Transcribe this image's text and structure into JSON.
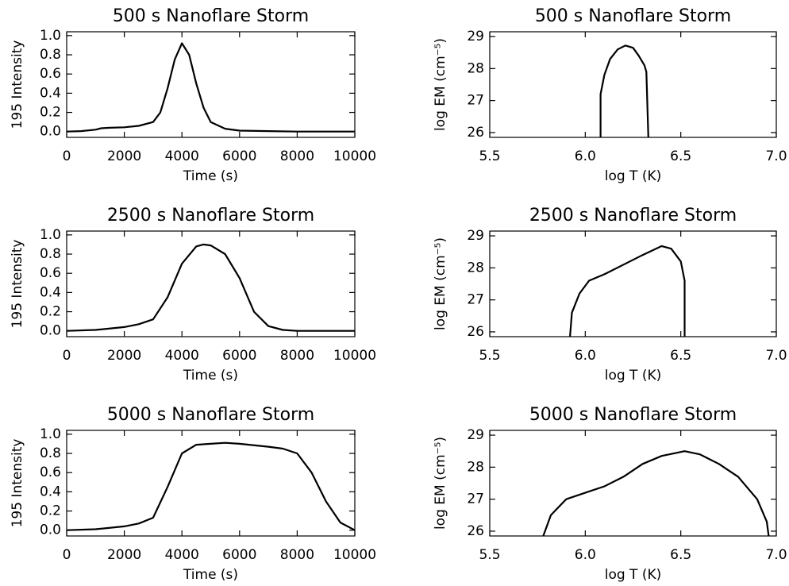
{
  "chart_data": [
    {
      "type": "line",
      "title": "500 s Nanoflare Storm",
      "xlabel": "Time (s)",
      "ylabel": "195 Intensity",
      "color": "#000000",
      "x": [
        0,
        500,
        1000,
        1200,
        1500,
        2000,
        2500,
        3000,
        3250,
        3500,
        3750,
        4000,
        4250,
        4500,
        4750,
        5000,
        5500,
        6000,
        7000,
        8000,
        9000,
        10000
      ],
      "values": [
        0,
        0.005,
        0.02,
        0.035,
        0.04,
        0.045,
        0.06,
        0.1,
        0.2,
        0.45,
        0.75,
        0.92,
        0.8,
        0.5,
        0.25,
        0.1,
        0.03,
        0.01,
        0.005,
        0,
        0,
        0
      ],
      "xlim": [
        0,
        10000
      ],
      "xticks": [
        0,
        2000,
        4000,
        6000,
        8000,
        10000
      ],
      "ylim": [
        -0.06,
        1.04
      ],
      "yticks": [
        {
          "value": 0,
          "label": "0.0"
        },
        0.2,
        0.4,
        0.6,
        0.8,
        {
          "value": 1,
          "label": "1.0"
        }
      ]
    },
    {
      "type": "line",
      "title": "500 s Nanoflare Storm",
      "xlabel": "log T (K)",
      "ylabel": "log EM (cm⁻⁵)",
      "color": "#000000",
      "x": [
        6.08,
        6.08,
        6.1,
        6.13,
        6.17,
        6.21,
        6.25,
        6.28,
        6.31,
        6.32,
        6.33
      ],
      "values": [
        25.85,
        27.2,
        27.8,
        28.3,
        28.6,
        28.72,
        28.65,
        28.4,
        28.1,
        27.9,
        25.85
      ],
      "xlim": [
        5.5,
        7.0
      ],
      "xticks": [
        5.5,
        {
          "value": 6,
          "label": "6.0"
        },
        6.5,
        {
          "value": 7,
          "label": "7.0"
        }
      ],
      "ylim": [
        25.85,
        29.15
      ],
      "yticks": [
        26,
        27,
        28,
        29
      ]
    },
    {
      "type": "line",
      "title": "2500 s Nanoflare Storm",
      "xlabel": "Time (s)",
      "ylabel": "195 Intensity",
      "color": "#000000",
      "x": [
        0,
        1000,
        2000,
        2500,
        3000,
        3500,
        4000,
        4500,
        4750,
        5000,
        5500,
        6000,
        6500,
        7000,
        7500,
        8000,
        10000
      ],
      "values": [
        0,
        0.01,
        0.04,
        0.07,
        0.12,
        0.35,
        0.7,
        0.88,
        0.9,
        0.89,
        0.8,
        0.55,
        0.2,
        0.05,
        0.01,
        0,
        0
      ],
      "xlim": [
        0,
        10000
      ],
      "xticks": [
        0,
        2000,
        4000,
        6000,
        8000,
        10000
      ],
      "ylim": [
        -0.06,
        1.04
      ],
      "yticks": [
        {
          "value": 0,
          "label": "0.0"
        },
        0.2,
        0.4,
        0.6,
        0.8,
        {
          "value": 1,
          "label": "1.0"
        }
      ]
    },
    {
      "type": "line",
      "title": "2500 s Nanoflare Storm",
      "xlabel": "log T (K)",
      "ylabel": "log EM (cm⁻⁵)",
      "color": "#000000",
      "x": [
        5.92,
        5.93,
        5.97,
        6.02,
        6.1,
        6.2,
        6.3,
        6.4,
        6.45,
        6.5,
        6.52,
        6.52
      ],
      "values": [
        25.85,
        26.6,
        27.2,
        27.6,
        27.8,
        28.1,
        28.4,
        28.68,
        28.6,
        28.2,
        27.6,
        25.85
      ],
      "xlim": [
        5.5,
        7.0
      ],
      "xticks": [
        5.5,
        {
          "value": 6,
          "label": "6.0"
        },
        6.5,
        {
          "value": 7,
          "label": "7.0"
        }
      ],
      "ylim": [
        25.85,
        29.15
      ],
      "yticks": [
        26,
        27,
        28,
        29
      ]
    },
    {
      "type": "line",
      "title": "5000 s Nanoflare Storm",
      "xlabel": "Time (s)",
      "ylabel": "195 Intensity",
      "color": "#000000",
      "x": [
        0,
        1000,
        2000,
        2500,
        3000,
        3500,
        4000,
        4500,
        5000,
        5500,
        6000,
        7000,
        7500,
        8000,
        8500,
        9000,
        9500,
        10000
      ],
      "values": [
        0,
        0.01,
        0.04,
        0.07,
        0.13,
        0.45,
        0.8,
        0.89,
        0.9,
        0.91,
        0.9,
        0.87,
        0.85,
        0.8,
        0.6,
        0.3,
        0.08,
        0
      ],
      "xlim": [
        0,
        10000
      ],
      "xticks": [
        0,
        2000,
        4000,
        6000,
        8000,
        10000
      ],
      "ylim": [
        -0.06,
        1.04
      ],
      "yticks": [
        {
          "value": 0,
          "label": "0.0"
        },
        0.2,
        0.4,
        0.6,
        0.8,
        {
          "value": 1,
          "label": "1.0"
        }
      ]
    },
    {
      "type": "line",
      "title": "5000 s Nanoflare Storm",
      "xlabel": "log T (K)",
      "ylabel": "log EM (cm⁻⁵)",
      "color": "#000000",
      "x": [
        5.78,
        5.82,
        5.9,
        6.0,
        6.1,
        6.2,
        6.3,
        6.4,
        6.52,
        6.6,
        6.7,
        6.8,
        6.9,
        6.95,
        6.96
      ],
      "values": [
        25.85,
        26.5,
        27.0,
        27.2,
        27.4,
        27.7,
        28.1,
        28.35,
        28.5,
        28.4,
        28.1,
        27.7,
        27.0,
        26.3,
        25.85
      ],
      "xlim": [
        5.5,
        7.0
      ],
      "xticks": [
        5.5,
        {
          "value": 6,
          "label": "6.0"
        },
        6.5,
        {
          "value": 7,
          "label": "7.0"
        }
      ],
      "ylim": [
        25.85,
        29.15
      ],
      "yticks": [
        26,
        27,
        28,
        29
      ]
    }
  ]
}
